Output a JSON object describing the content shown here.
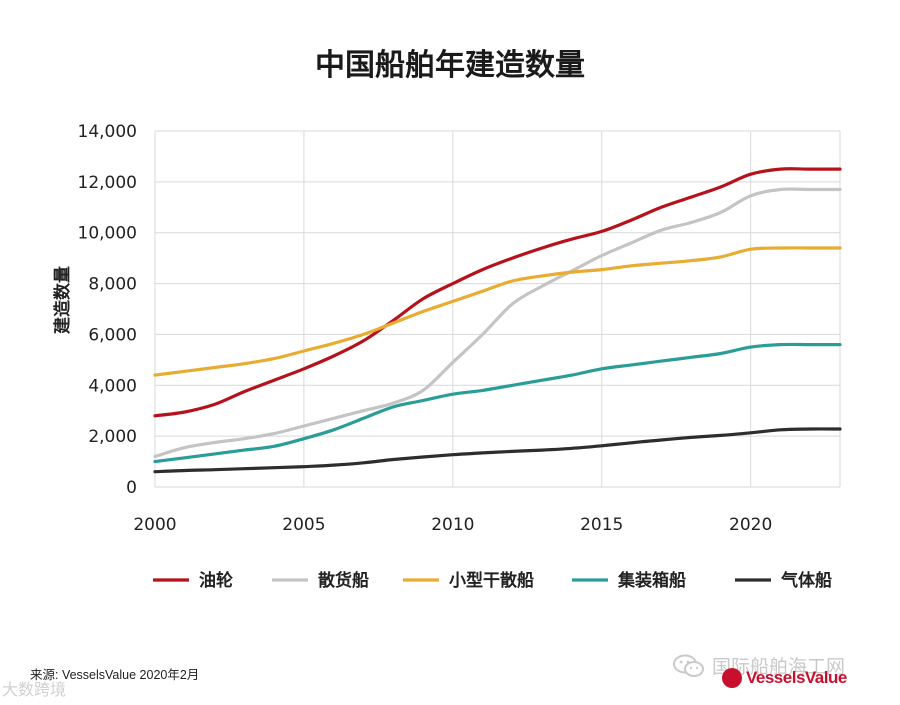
{
  "chart_data": {
    "type": "line",
    "title": "中国船舶年建造数量",
    "xlabel": "",
    "ylabel": "建造数量",
    "xlim": [
      2000,
      2023
    ],
    "ylim": [
      0,
      14000
    ],
    "grid": true,
    "legend_position": "bottom",
    "x_ticks": [
      2000,
      2005,
      2010,
      2015,
      2020
    ],
    "x_tick_labels": [
      "2000",
      "2005",
      "2010",
      "2015",
      "2020"
    ],
    "y_ticks": [
      0,
      2000,
      4000,
      6000,
      8000,
      10000,
      12000,
      14000
    ],
    "y_tick_labels": [
      "0",
      "2,000",
      "4,000",
      "6,000",
      "8,000",
      "10,000",
      "12,000",
      "14,000"
    ],
    "x": [
      2000,
      2001,
      2002,
      2003,
      2004,
      2005,
      2006,
      2007,
      2008,
      2009,
      2010,
      2011,
      2012,
      2013,
      2014,
      2015,
      2016,
      2017,
      2018,
      2019,
      2020,
      2021,
      2022,
      2023
    ],
    "series": [
      {
        "name": "油轮",
        "color": "#b5121b",
        "values": [
          2800,
          2950,
          3250,
          3750,
          4200,
          4650,
          5150,
          5750,
          6550,
          7400,
          8000,
          8550,
          9000,
          9400,
          9750,
          10050,
          10500,
          11000,
          11400,
          11800,
          12300,
          12500,
          12500,
          12500
        ]
      },
      {
        "name": "散货船",
        "color": "#c4c4c4",
        "values": [
          1200,
          1550,
          1750,
          1900,
          2100,
          2400,
          2700,
          3000,
          3300,
          3800,
          4900,
          6000,
          7200,
          7900,
          8500,
          9100,
          9600,
          10100,
          10400,
          10800,
          11450,
          11700,
          11700,
          11700
        ]
      },
      {
        "name": "小型干散船",
        "color": "#e8ac32",
        "values": [
          4400,
          4550,
          4700,
          4850,
          5050,
          5350,
          5650,
          6000,
          6450,
          6900,
          7300,
          7700,
          8100,
          8300,
          8450,
          8550,
          8700,
          8800,
          8900,
          9050,
          9350,
          9400,
          9400,
          9400
        ]
      },
      {
        "name": "集装箱船",
        "color": "#2a9d98",
        "values": [
          1000,
          1150,
          1300,
          1450,
          1600,
          1900,
          2250,
          2700,
          3150,
          3400,
          3650,
          3800,
          4000,
          4200,
          4400,
          4650,
          4800,
          4950,
          5100,
          5250,
          5500,
          5600,
          5600,
          5600
        ]
      },
      {
        "name": "气体船",
        "color": "#2d2d2d",
        "values": [
          600,
          650,
          680,
          720,
          760,
          800,
          860,
          950,
          1080,
          1180,
          1270,
          1340,
          1400,
          1450,
          1520,
          1620,
          1740,
          1850,
          1950,
          2030,
          2130,
          2250,
          2280,
          2280
        ]
      }
    ]
  },
  "footer": {
    "source": "来源: VesselsValue 2020年2月",
    "left_brand": "大数跨境",
    "wechat_brand": "国际船舶海工网",
    "logo_text": "VesselsValue"
  },
  "icons": {
    "wechat": "wechat-icon",
    "logo": "vesselsvalue-logo-icon"
  }
}
